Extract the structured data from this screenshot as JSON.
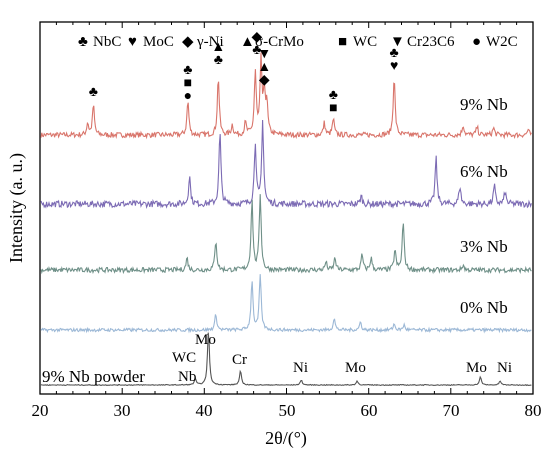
{
  "chart_data": {
    "type": "line",
    "xlabel": "2θ/(°)",
    "ylabel": "Intensity (a. u.)",
    "xlim": [
      20,
      80
    ],
    "xticks": [
      20,
      30,
      40,
      50,
      60,
      70,
      80
    ],
    "grid": false,
    "legend": {
      "placement": "top",
      "entries": [
        {
          "symbol": "♣",
          "label": "NbC"
        },
        {
          "symbol": "♥",
          "label": "MoC"
        },
        {
          "symbol": "◆",
          "label": "γ-Ni"
        },
        {
          "symbol": "▲",
          "label": "σ-CrMo"
        },
        {
          "symbol": "■",
          "label": "WC"
        },
        {
          "symbol": "▼",
          "label": "Cr23C6"
        },
        {
          "symbol": "●",
          "label": "W2C"
        }
      ]
    },
    "series": [
      {
        "name": "9% Nb",
        "color": "#d9756b",
        "peaks": [
          [
            25.8,
            0.12
          ],
          [
            26.5,
            0.3
          ],
          [
            38.0,
            0.34
          ],
          [
            41.7,
            0.58
          ],
          [
            43.4,
            0.1
          ],
          [
            45.0,
            0.12
          ],
          [
            46.2,
            0.62
          ],
          [
            46.9,
            0.72
          ],
          [
            47.3,
            0.4
          ],
          [
            47.6,
            0.3
          ],
          [
            54.6,
            0.12
          ],
          [
            55.7,
            0.16
          ],
          [
            63.1,
            0.58
          ],
          [
            71.5,
            0.1
          ],
          [
            73.2,
            0.08
          ],
          [
            75.2,
            0.07
          ],
          [
            79.4,
            0.05
          ]
        ]
      },
      {
        "name": "6% Nb",
        "color": "#7c6bb4",
        "peaks": [
          [
            38.2,
            0.28
          ],
          [
            41.9,
            0.72
          ],
          [
            46.2,
            0.62
          ],
          [
            47.1,
            0.82
          ],
          [
            59.1,
            0.08
          ],
          [
            68.2,
            0.46
          ],
          [
            71.1,
            0.18
          ],
          [
            75.3,
            0.18
          ],
          [
            76.6,
            0.12
          ]
        ]
      },
      {
        "name": "3% Nb",
        "color": "#6f9088",
        "peaks": [
          [
            37.9,
            0.12
          ],
          [
            41.4,
            0.3
          ],
          [
            45.8,
            0.7
          ],
          [
            46.8,
            0.76
          ],
          [
            54.8,
            0.08
          ],
          [
            55.9,
            0.12
          ],
          [
            59.2,
            0.15
          ],
          [
            60.3,
            0.12
          ],
          [
            63.2,
            0.2
          ],
          [
            64.2,
            0.48
          ],
          [
            71.5,
            0.05
          ]
        ]
      },
      {
        "name": "0% Nb",
        "color": "#9cb8d6",
        "peaks": [
          [
            41.4,
            0.16
          ],
          [
            45.8,
            0.5
          ],
          [
            46.8,
            0.55
          ],
          [
            55.8,
            0.12
          ],
          [
            59.0,
            0.08
          ],
          [
            63.1,
            0.06
          ],
          [
            64.3,
            0.05
          ]
        ]
      },
      {
        "name": "9% Nb powder",
        "color": "#555555",
        "peaks": [
          [
            38.9,
            0.06
          ],
          [
            40.5,
            0.55
          ],
          [
            44.4,
            0.14
          ],
          [
            51.8,
            0.05
          ],
          [
            58.6,
            0.04
          ],
          [
            73.6,
            0.08
          ],
          [
            76.0,
            0.04
          ]
        ]
      }
    ],
    "sample_labels": [
      "9% Nb",
      "6% Nb",
      "3% Nb",
      "0% Nb",
      "9% Nb powder"
    ],
    "powder_peak_labels": [
      "WC",
      "Nb",
      "Mo",
      "Cr",
      "Ni",
      "Mo",
      "Mo",
      "Ni"
    ],
    "peak_markers": [
      {
        "x": 26.5,
        "stack": [
          "♣"
        ]
      },
      {
        "x": 38.0,
        "stack": [
          "♣",
          "■",
          "●"
        ]
      },
      {
        "x": 41.7,
        "stack": [
          "▲",
          "♣"
        ]
      },
      {
        "x": 46.4,
        "stack": [
          "◆",
          "♣"
        ]
      },
      {
        "x": 47.3,
        "stack": [
          "▼",
          "▲",
          "◆"
        ]
      },
      {
        "x": 55.7,
        "stack": [
          "♣",
          "■"
        ]
      },
      {
        "x": 63.1,
        "stack": [
          "♣",
          "♥"
        ]
      }
    ]
  }
}
